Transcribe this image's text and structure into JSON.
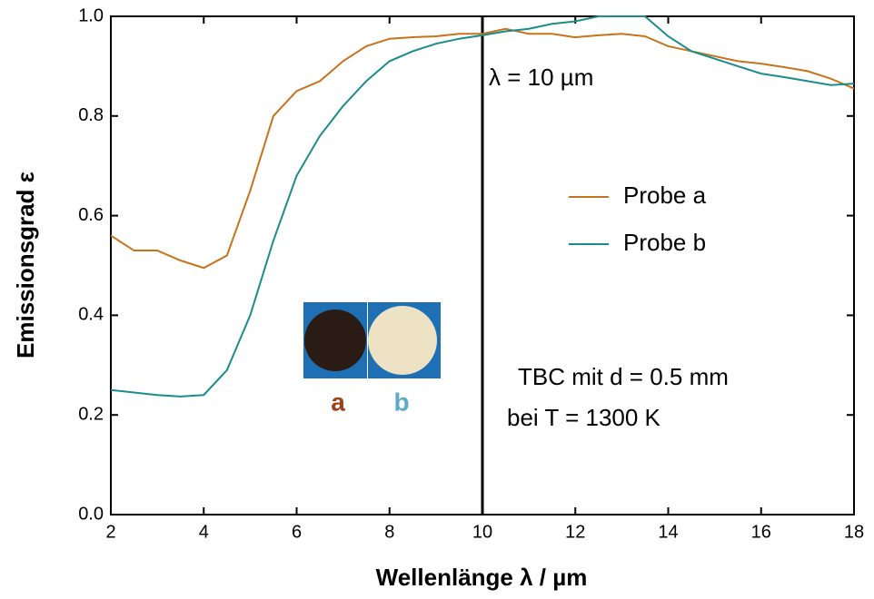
{
  "chart_data": {
    "type": "line",
    "x_label": "Wellenlänge λ / µm",
    "y_label": "Emissionsgrad ε",
    "xlim": [
      2,
      18
    ],
    "ylim": [
      0,
      1
    ],
    "xticks": [
      2,
      4,
      6,
      8,
      10,
      12,
      14,
      16,
      18
    ],
    "yticks": [
      {
        "value": 0,
        "label": "0.0"
      },
      0.2,
      0.4,
      0.6,
      0.8,
      {
        "value": 1,
        "label": "1.0"
      }
    ],
    "vline": 10,
    "vline_label": "λ = 10 µm",
    "annotations": [
      "TBC mit d = 0.5 mm",
      "bei T = 1300 K"
    ],
    "sample_labels": [
      "a",
      "b"
    ],
    "x": [
      2,
      2.5,
      3,
      3.5,
      4,
      4.5,
      5,
      5.5,
      6,
      6.5,
      7,
      7.5,
      8,
      8.5,
      9,
      9.5,
      10,
      10.5,
      11,
      11.5,
      12,
      12.5,
      13,
      13.5,
      14,
      14.5,
      15,
      15.5,
      16,
      16.5,
      17,
      17.5,
      18
    ],
    "series": [
      {
        "name": "Probe a",
        "color": "#c8731c",
        "values": [
          0.56,
          0.53,
          0.53,
          0.51,
          0.495,
          0.52,
          0.65,
          0.8,
          0.85,
          0.87,
          0.91,
          0.94,
          0.955,
          0.958,
          0.96,
          0.965,
          0.965,
          0.975,
          0.965,
          0.965,
          0.958,
          0.962,
          0.965,
          0.96,
          0.94,
          0.93,
          0.92,
          0.91,
          0.905,
          0.898,
          0.89,
          0.875,
          0.855
        ]
      },
      {
        "name": "Probe b",
        "color": "#1b8c8c",
        "values": [
          0.25,
          0.245,
          0.24,
          0.237,
          0.24,
          0.29,
          0.4,
          0.55,
          0.68,
          0.76,
          0.82,
          0.87,
          0.91,
          0.93,
          0.945,
          0.955,
          0.962,
          0.97,
          0.975,
          0.985,
          0.99,
          1.0,
          1.0,
          1.0,
          0.96,
          0.93,
          0.915,
          0.9,
          0.885,
          0.878,
          0.87,
          0.862,
          0.865
        ]
      }
    ]
  }
}
